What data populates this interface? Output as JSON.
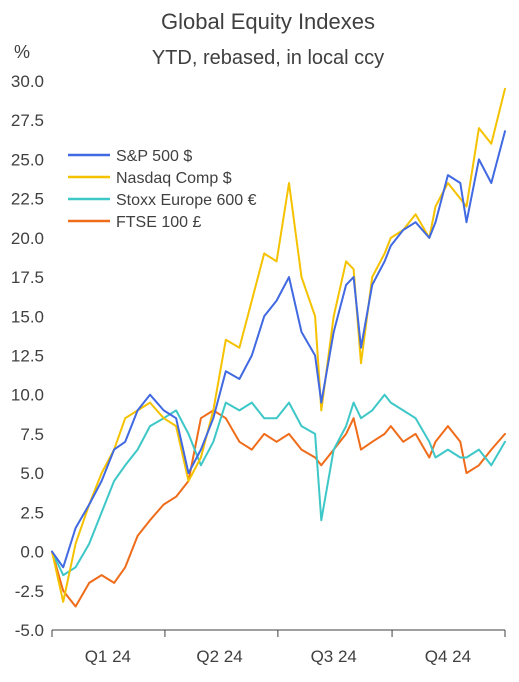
{
  "chart_data": {
    "type": "line",
    "title": "Global Equity Indexes",
    "subtitle": "YTD, rebased, in local ccy",
    "ylabel": "%",
    "ylim": [
      -5,
      30
    ],
    "yticks": [
      "30.0",
      "27.5",
      "25.0",
      "22.5",
      "20.0",
      "17.5",
      "15.0",
      "12.5",
      "10.0",
      "7.5",
      "5.0",
      "2.5",
      "0.0",
      "-2.5",
      "-5.0"
    ],
    "negative_tick_color": "#c00000",
    "grid": false,
    "legend_position": "upper-left",
    "xlim": [
      "2024-01-01",
      "2024-12-31"
    ],
    "xticks": [
      {
        "label": "Q1 24",
        "date": "2024-02-15"
      },
      {
        "label": "Q2 24",
        "date": "2024-05-15"
      },
      {
        "label": "Q3 24",
        "date": "2024-08-15"
      },
      {
        "label": "Q4 24",
        "date": "2024-11-15"
      }
    ],
    "x": [
      "2024-01-01",
      "2024-01-10",
      "2024-01-20",
      "2024-01-31",
      "2024-02-10",
      "2024-02-20",
      "2024-02-29",
      "2024-03-10",
      "2024-03-20",
      "2024-03-31",
      "2024-04-10",
      "2024-04-20",
      "2024-04-30",
      "2024-05-10",
      "2024-05-20",
      "2024-05-31",
      "2024-06-10",
      "2024-06-20",
      "2024-06-30",
      "2024-07-10",
      "2024-07-20",
      "2024-07-31",
      "2024-08-05",
      "2024-08-15",
      "2024-08-25",
      "2024-08-31",
      "2024-09-06",
      "2024-09-15",
      "2024-09-25",
      "2024-09-30",
      "2024-10-10",
      "2024-10-20",
      "2024-10-31",
      "2024-11-05",
      "2024-11-15",
      "2024-11-25",
      "2024-11-30",
      "2024-12-10",
      "2024-12-20",
      "2024-12-31"
    ],
    "series": [
      {
        "name": "S&P 500 $",
        "color": "#4169e1",
        "values": [
          0.0,
          -1.0,
          1.5,
          3.0,
          4.5,
          6.5,
          7.0,
          9.0,
          10.0,
          9.0,
          8.5,
          5.0,
          6.5,
          8.5,
          11.5,
          11.0,
          12.5,
          15.0,
          16.0,
          17.5,
          14.0,
          12.5,
          9.5,
          14.0,
          17.0,
          17.5,
          13.0,
          17.0,
          18.5,
          19.5,
          20.5,
          21.0,
          20.0,
          21.0,
          24.0,
          23.5,
          21.0,
          25.0,
          23.5,
          26.8
        ]
      },
      {
        "name": "Nasdaq Comp $",
        "color": "#f5c200",
        "values": [
          0.0,
          -3.2,
          0.5,
          3.0,
          5.0,
          6.5,
          8.5,
          9.0,
          9.5,
          8.5,
          8.0,
          4.5,
          6.0,
          9.0,
          13.5,
          13.0,
          16.0,
          19.0,
          18.5,
          23.5,
          17.5,
          15.0,
          9.0,
          15.0,
          18.5,
          18.0,
          12.0,
          17.5,
          19.0,
          20.0,
          20.5,
          21.5,
          20.0,
          22.0,
          23.5,
          22.5,
          22.0,
          27.0,
          26.0,
          29.5
        ]
      },
      {
        "name": "Stoxx Europe 600 €",
        "color": "#3ec7c7",
        "values": [
          0.0,
          -1.5,
          -1.0,
          0.5,
          2.5,
          4.5,
          5.5,
          6.5,
          8.0,
          8.5,
          9.0,
          7.5,
          5.5,
          7.0,
          9.5,
          9.0,
          9.5,
          8.5,
          8.5,
          9.5,
          8.0,
          7.5,
          2.0,
          6.5,
          8.0,
          9.5,
          8.5,
          9.0,
          10.0,
          9.5,
          9.0,
          8.5,
          7.0,
          6.0,
          6.5,
          6.0,
          6.0,
          6.5,
          5.5,
          7.0
        ]
      },
      {
        "name": "FTSE 100 £",
        "color": "#ef6c1a",
        "values": [
          0.0,
          -2.5,
          -3.5,
          -2.0,
          -1.5,
          -2.0,
          -1.0,
          1.0,
          2.0,
          3.0,
          3.5,
          4.5,
          8.5,
          9.0,
          8.5,
          7.0,
          6.5,
          7.5,
          7.0,
          7.5,
          6.5,
          6.0,
          5.5,
          6.5,
          7.5,
          8.5,
          6.5,
          7.0,
          7.5,
          8.0,
          7.0,
          7.5,
          6.0,
          7.0,
          8.0,
          7.0,
          5.0,
          5.5,
          6.5,
          7.5
        ]
      }
    ]
  }
}
